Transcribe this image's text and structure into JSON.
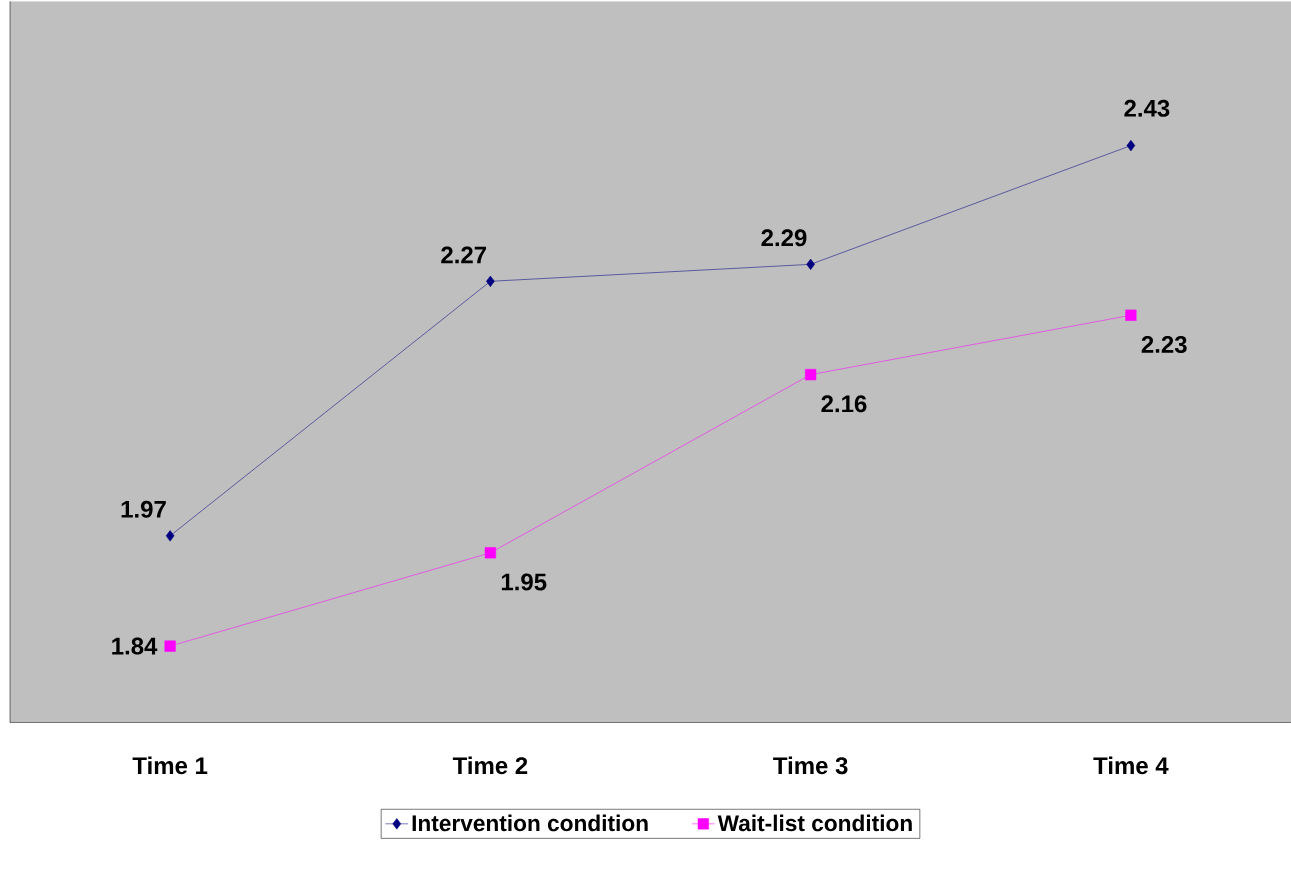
{
  "chart_data": {
    "type": "line",
    "categories": [
      "Time 1",
      "Time 2",
      "Time 3",
      "Time 4"
    ],
    "series": [
      {
        "name": "Intervention condition",
        "color": "#000080",
        "marker": "diamond",
        "values": [
          1.97,
          2.27,
          2.29,
          2.43
        ]
      },
      {
        "name": "Wait-list condition",
        "color": "#ff00ff",
        "marker": "square",
        "values": [
          1.84,
          1.95,
          2.16,
          2.23
        ]
      }
    ],
    "ylim": [
      1.75,
      2.6
    ],
    "data_labels": true,
    "legend": "bottom",
    "line_style": "solid"
  }
}
